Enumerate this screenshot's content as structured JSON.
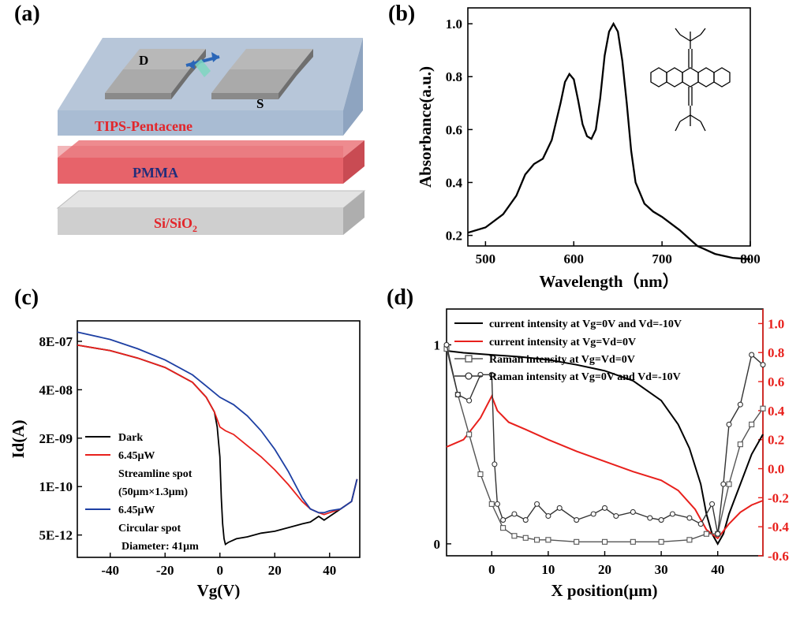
{
  "panels": {
    "a": "(a)",
    "b": "(b)",
    "c": "(c)",
    "d": "(d)"
  },
  "device": {
    "layer_top": "TIPS-Pentacene",
    "layer_mid": "PMMA",
    "layer_bottom_main": "Si/SiO",
    "layer_bottom_sub": "2",
    "drain": "D",
    "source": "S",
    "colors": {
      "top": "#b7c6d9",
      "mid": "#e7636a",
      "bottom": "#cfcfcf",
      "label_red": "#e2262b",
      "label_navy": "#232d7a"
    }
  },
  "chart_data": [
    {
      "panel": "b",
      "type": "line",
      "xlabel": "Wavelength（nm）",
      "ylabel": "Absorbance(a.u.)",
      "xlim": [
        480,
        800
      ],
      "ylim": [
        0.16,
        1.06
      ],
      "xticks": [
        "500",
        "600",
        "700",
        "800"
      ],
      "yticks": [
        "0.2",
        "0.4",
        "0.6",
        "0.8",
        "1.0"
      ],
      "series": [
        {
          "name": "absorbance",
          "x": [
            480,
            500,
            520,
            535,
            545,
            555,
            565,
            575,
            585,
            590,
            595,
            600,
            605,
            610,
            615,
            620,
            625,
            630,
            635,
            640,
            645,
            650,
            655,
            660,
            665,
            670,
            680,
            690,
            700,
            720,
            740,
            760,
            780,
            800
          ],
          "y": [
            0.21,
            0.23,
            0.28,
            0.35,
            0.43,
            0.47,
            0.49,
            0.56,
            0.7,
            0.78,
            0.81,
            0.79,
            0.71,
            0.62,
            0.575,
            0.565,
            0.6,
            0.72,
            0.88,
            0.97,
            1.0,
            0.97,
            0.86,
            0.7,
            0.52,
            0.4,
            0.32,
            0.29,
            0.27,
            0.22,
            0.16,
            0.13,
            0.115,
            0.11
          ]
        }
      ]
    },
    {
      "panel": "c",
      "type": "line",
      "xlabel": "Vg(V)",
      "ylabel": "Id(A)",
      "xlim": [
        -52,
        51
      ],
      "yticks": [
        "8E-07",
        "4E-08",
        "2E-09",
        "1E-10",
        "5E-12"
      ],
      "xticks": [
        "-40",
        "-20",
        "0",
        "20",
        "40"
      ],
      "legend": [
        {
          "name": "Dark",
          "color": "#000000"
        },
        {
          "name": "6.45μW",
          "detail": "Streamline spot",
          "detail2": "(50μm×1.3μm)",
          "color": "#e8201c"
        },
        {
          "name": "6.45μW",
          "detail": "Circular spot",
          "detail2": "Diameter: 41μm",
          "color": "#1d3fa3"
        }
      ],
      "series": [
        {
          "name": "Dark",
          "x": [
            -52,
            -40,
            -30,
            -20,
            -10,
            -5,
            -2,
            -1,
            0,
            0.5,
            1,
            1.5,
            2,
            3,
            6,
            10,
            15,
            20,
            25,
            30,
            33,
            36,
            38,
            40,
            44,
            48,
            50
          ],
          "y": [
            -6.2,
            -6.35,
            -6.55,
            -6.8,
            -7.2,
            -7.6,
            -8.0,
            -8.4,
            -9.2,
            -10.3,
            -11.0,
            -11.4,
            -11.55,
            -11.5,
            -11.4,
            -11.35,
            -11.25,
            -11.2,
            -11.1,
            -11.0,
            -10.95,
            -10.8,
            -10.9,
            -10.8,
            -10.6,
            -10.4,
            -9.8
          ]
        },
        {
          "name": "6.45μW streamline",
          "x": [
            -52,
            -40,
            -30,
            -20,
            -10,
            -5,
            -2,
            -1,
            0,
            2,
            5,
            10,
            15,
            20,
            25,
            30,
            33,
            36,
            38,
            40,
            44,
            48,
            50
          ],
          "y": [
            -6.2,
            -6.35,
            -6.55,
            -6.8,
            -7.2,
            -7.6,
            -8.0,
            -8.2,
            -8.4,
            -8.5,
            -8.6,
            -8.9,
            -9.2,
            -9.55,
            -9.95,
            -10.4,
            -10.6,
            -10.7,
            -10.75,
            -10.7,
            -10.6,
            -10.4,
            -9.8
          ]
        },
        {
          "name": "6.45μW circular",
          "x": [
            -52,
            -40,
            -30,
            -20,
            -10,
            -5,
            0,
            5,
            10,
            15,
            20,
            25,
            30,
            33,
            36,
            38,
            40,
            44,
            48,
            50
          ],
          "y": [
            -5.85,
            -6.05,
            -6.3,
            -6.6,
            -7.0,
            -7.3,
            -7.6,
            -7.8,
            -8.1,
            -8.5,
            -9.0,
            -9.6,
            -10.3,
            -10.6,
            -10.7,
            -10.7,
            -10.65,
            -10.6,
            -10.4,
            -9.8
          ]
        }
      ]
    },
    {
      "panel": "d",
      "type": "line",
      "xlabel": "X position(μm)",
      "xlim": [
        -8,
        48
      ],
      "ylim_left": [
        -0.06,
        1.18
      ],
      "ylim_right": [
        -0.6,
        1.1
      ],
      "xticks": [
        "0",
        "10",
        "20",
        "30",
        "40"
      ],
      "yticks_left": [
        "0",
        "1"
      ],
      "yticks_right": [
        "-0.6",
        "-0.4",
        "-0.2",
        "0.0",
        "0.2",
        "0.4",
        "0.6",
        "0.8",
        "1.0"
      ],
      "legend": [
        {
          "name": "current intensity at Vg=0V and Vd=-10V",
          "color": "#000000",
          "marker": "none"
        },
        {
          "name": "current intensity at Vg=Vd=0V",
          "color": "#e8201c",
          "marker": "none"
        },
        {
          "name": "Raman intensity at Vg=Vd=0V",
          "color": "#555555",
          "marker": "square"
        },
        {
          "name": "Raman intensity at Vg=0V and Vd=-10V",
          "color": "#333333",
          "marker": "circle"
        }
      ],
      "series": [
        {
          "name": "current intensity at Vg=0V and Vd=-10V",
          "axis": "left",
          "x": [
            -8,
            -5,
            0,
            5,
            10,
            15,
            20,
            25,
            30,
            33,
            35,
            37,
            38,
            39,
            40,
            41,
            42,
            44,
            46,
            48
          ],
          "y": [
            0.97,
            0.96,
            0.95,
            0.94,
            0.925,
            0.9,
            0.87,
            0.82,
            0.72,
            0.6,
            0.48,
            0.3,
            0.15,
            0.05,
            0.0,
            0.05,
            0.15,
            0.3,
            0.45,
            0.55
          ]
        },
        {
          "name": "current intensity at Vg=Vd=0V",
          "axis": "right",
          "x": [
            -8,
            -5,
            -2,
            0,
            1,
            3,
            6,
            10,
            15,
            20,
            25,
            30,
            33,
            36,
            38,
            40,
            42,
            44,
            46,
            48
          ],
          "y": [
            0.15,
            0.2,
            0.35,
            0.5,
            0.4,
            0.32,
            0.27,
            0.2,
            0.12,
            0.05,
            -0.02,
            -0.08,
            -0.15,
            -0.28,
            -0.42,
            -0.48,
            -0.38,
            -0.3,
            -0.25,
            -0.22
          ]
        },
        {
          "name": "Raman intensity at Vg=Vd=0V",
          "axis": "left",
          "x": [
            -8,
            -6,
            -4,
            -2,
            0,
            2,
            4,
            6,
            8,
            10,
            15,
            20,
            25,
            30,
            35,
            38,
            40,
            42,
            44,
            46,
            48
          ],
          "y": [
            0.98,
            0.75,
            0.55,
            0.35,
            0.2,
            0.08,
            0.04,
            0.03,
            0.02,
            0.02,
            0.01,
            0.01,
            0.01,
            0.01,
            0.02,
            0.05,
            0.05,
            0.3,
            0.5,
            0.6,
            0.68
          ]
        },
        {
          "name": "Raman intensity at Vg=0V and Vd=-10V",
          "axis": "left",
          "x": [
            -8,
            -6,
            -4,
            -2,
            0,
            0.5,
            1,
            2,
            4,
            6,
            8,
            10,
            12,
            15,
            18,
            20,
            22,
            25,
            28,
            30,
            32,
            35,
            37,
            39,
            40,
            41,
            42,
            44,
            46,
            48
          ],
          "y": [
            1.0,
            0.75,
            0.72,
            0.85,
            0.85,
            0.4,
            0.2,
            0.12,
            0.15,
            0.12,
            0.2,
            0.14,
            0.18,
            0.12,
            0.15,
            0.18,
            0.14,
            0.16,
            0.13,
            0.12,
            0.15,
            0.13,
            0.1,
            0.2,
            0.05,
            0.3,
            0.6,
            0.7,
            0.95,
            0.9
          ]
        }
      ]
    }
  ]
}
